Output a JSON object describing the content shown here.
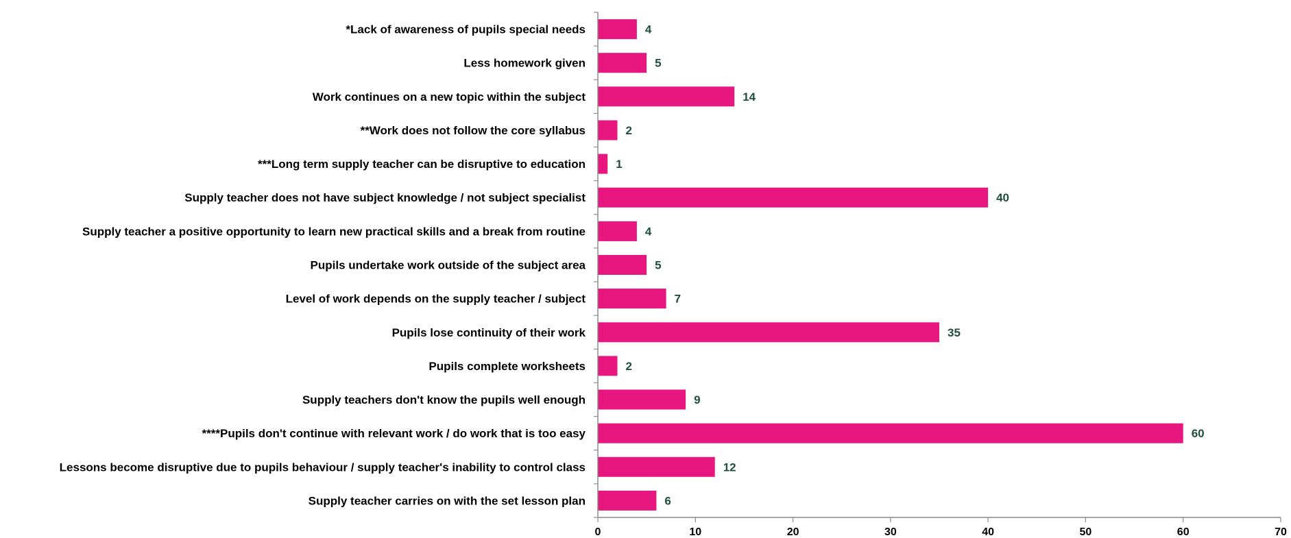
{
  "chart_data": {
    "type": "bar",
    "orientation": "horizontal",
    "title": "",
    "xlabel": "",
    "ylabel": "",
    "categories": [
      "*Lack of awareness of pupils special needs",
      "Less homework given",
      "Work continues on a new topic within the subject",
      "**Work does not follow the core syllabus",
      "***Long term supply teacher can be disruptive to education",
      "Supply teacher does not have subject knowledge / not subject specialist",
      "Supply teacher a positive opportunity to learn new practical skills and a break from routine",
      "Pupils undertake work outside of the subject area",
      "Level of work depends on the supply teacher / subject",
      "Pupils lose continuity of their work",
      "Pupils complete worksheets",
      "Supply teachers don't know the pupils well enough",
      "****Pupils don't continue with relevant work / do work that is too easy",
      "Lessons become disruptive due to pupils behaviour / supply teacher's inability to control class",
      "Supply teacher carries on with the set lesson plan"
    ],
    "values": [
      4,
      5,
      14,
      2,
      1,
      40,
      4,
      5,
      7,
      35,
      2,
      9,
      60,
      12,
      6
    ],
    "xlim": [
      0,
      70
    ],
    "xticks": [
      0,
      10,
      20,
      30,
      40,
      50,
      60,
      70
    ],
    "grid": false,
    "legend": "none",
    "data_labels": true
  },
  "colors": {
    "bar": "#e8177f",
    "value_label": "#1f4e3d",
    "axis": "#8c8c8c",
    "text": "#000000"
  }
}
